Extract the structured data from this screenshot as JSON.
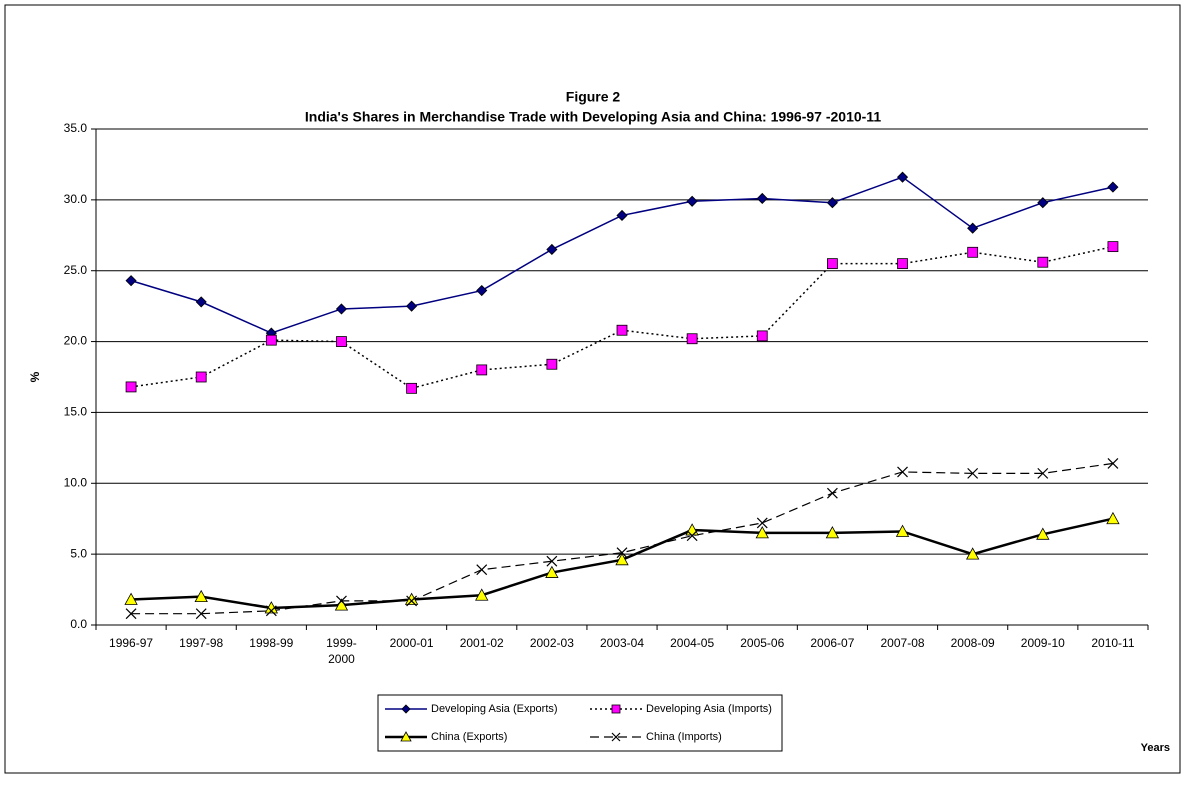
{
  "chart_data": {
    "type": "line",
    "title": "Figure 2",
    "subtitle": "India's Shares in Merchandise Trade with Developing Asia and China: 1996-97 -2010-11",
    "x_label": "Years",
    "y_label": "%",
    "categories": [
      "1996-97",
      "1997-98",
      "1998-99",
      "1999-2000",
      "2000-01",
      "2001-02",
      "2002-03",
      "2003-04",
      "2004-05",
      "2005-06",
      "2006-07",
      "2007-08",
      "2008-09",
      "2009-10",
      "2010-11"
    ],
    "ylim": [
      0,
      35
    ],
    "yticks": [
      {
        "value": 0,
        "label": "0.0"
      },
      {
        "value": 5,
        "label": "5.0"
      },
      {
        "value": 10,
        "label": "10.0"
      },
      {
        "value": 15,
        "label": "15.0"
      },
      {
        "value": 20,
        "label": "20.0"
      },
      {
        "value": 25,
        "label": "25.0"
      },
      {
        "value": 30,
        "label": "30.0"
      },
      {
        "value": 35,
        "label": "35.0"
      }
    ],
    "grid": true,
    "series": [
      {
        "name": "Developing Asia (Exports)",
        "color": "#000080",
        "marker_color": "#000080",
        "marker": "diamond",
        "line_style": "solid",
        "line_width": 1.5,
        "values": [
          24.3,
          22.8,
          20.6,
          22.3,
          22.5,
          23.6,
          26.5,
          28.9,
          29.9,
          30.1,
          29.8,
          31.6,
          28.0,
          29.8,
          30.9
        ]
      },
      {
        "name": "Developing Asia (Imports)",
        "color": "#000000",
        "marker_color": "#ff00ff",
        "marker": "square",
        "line_style": "dotted",
        "line_width": 1.5,
        "values": [
          16.8,
          17.5,
          20.1,
          20.0,
          16.7,
          18.0,
          18.4,
          20.8,
          20.2,
          20.4,
          25.5,
          25.5,
          26.3,
          25.6,
          26.7
        ]
      },
      {
        "name": "China (Exports)",
        "color": "#000000",
        "marker_color": "#ffff00",
        "marker": "triangle",
        "line_style": "solid",
        "line_width": 2.5,
        "values": [
          1.8,
          2.0,
          1.2,
          1.4,
          1.8,
          2.1,
          3.7,
          4.6,
          6.7,
          6.5,
          6.5,
          6.6,
          5.0,
          6.4,
          7.5
        ]
      },
      {
        "name": "China (Imports)",
        "color": "#000000",
        "marker_color": "#000000",
        "marker": "x",
        "line_style": "dashed",
        "line_width": 1.2,
        "values": [
          0.8,
          0.8,
          1.0,
          1.7,
          1.7,
          3.9,
          4.5,
          5.1,
          6.3,
          7.2,
          9.3,
          10.8,
          10.7,
          10.7,
          11.4
        ]
      }
    ]
  }
}
